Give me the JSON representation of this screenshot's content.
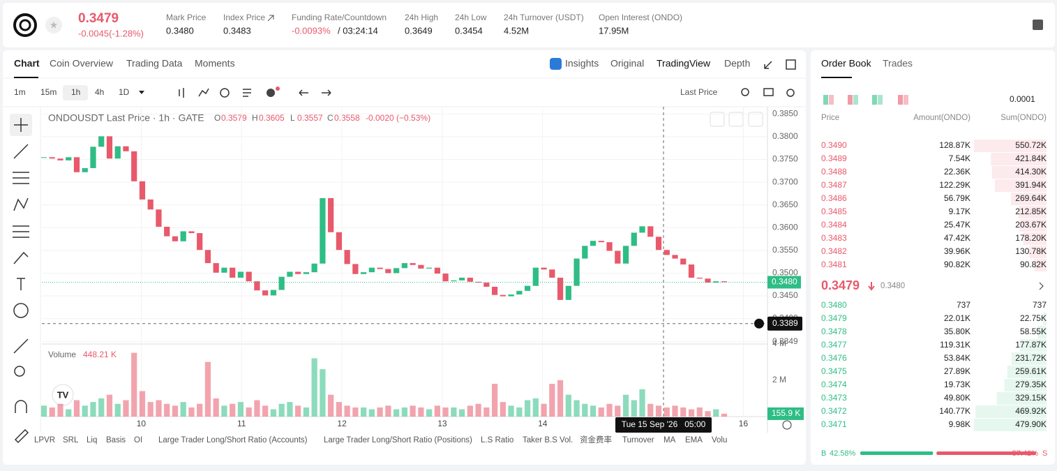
{
  "header": {
    "price": "0.3479",
    "change": "-0.0045(-1.28%)",
    "stats": [
      {
        "label": "Mark Price",
        "value": "0.3480"
      },
      {
        "label": "Index Price",
        "value": "0.3483"
      },
      {
        "label": "Funding Rate/Countdown",
        "value": "-0.0093%",
        "value2": "/ 03:24:14"
      },
      {
        "label": "24h High",
        "value": "0.3649"
      },
      {
        "label": "24h Low",
        "value": "0.3454"
      },
      {
        "label": "24h Turnover (USDT)",
        "value": "4.52M"
      },
      {
        "label": "Open Interest (ONDO)",
        "value": "17.95M"
      }
    ]
  },
  "tabs": [
    "Chart",
    "Coin Overview",
    "Trading Data",
    "Moments"
  ],
  "view_tabs": [
    "Insights",
    "Original",
    "TradingView",
    "Depth"
  ],
  "intervals": [
    "1m",
    "15m",
    "1h",
    "4h",
    "1D"
  ],
  "price_source": "Last Price",
  "legend": {
    "title": "ONDOUSDT Last Price · 1h · GATE",
    "ohlc": [
      {
        "key": "O",
        "value": "0.3579"
      },
      {
        "key": "H",
        "value": "0.3605"
      },
      {
        "key": "L",
        "value": "0.3557"
      },
      {
        "key": "C",
        "value": "0.3558"
      }
    ],
    "change": "-0.0020 (−0.53%)"
  },
  "chart_data": {
    "type": "candlestick",
    "up_color": "#2ebd85",
    "down_color": "#e8596b",
    "closes": [
      0.3755,
      0.3752,
      0.3748,
      0.3755,
      0.3722,
      0.3731,
      0.3778,
      0.3801,
      0.3752,
      0.3779,
      0.3768,
      0.3702,
      0.3662,
      0.364,
      0.3602,
      0.3581,
      0.357,
      0.3592,
      0.3588,
      0.3551,
      0.3522,
      0.3501,
      0.3512,
      0.349,
      0.3503,
      0.3482,
      0.3462,
      0.3451,
      0.3463,
      0.3492,
      0.3503,
      0.3498,
      0.3502,
      0.3521,
      0.3665,
      0.359,
      0.3551,
      0.352,
      0.3498,
      0.3502,
      0.3512,
      0.3509,
      0.35,
      0.3511,
      0.3522,
      0.3518,
      0.351,
      0.3512,
      0.3499,
      0.3482,
      0.3484,
      0.349,
      0.3481,
      0.3479,
      0.347,
      0.3452,
      0.3449,
      0.3453,
      0.3461,
      0.3472,
      0.3512,
      0.3508,
      0.349,
      0.3441,
      0.3472,
      0.3532,
      0.356,
      0.3571,
      0.3568,
      0.3549,
      0.3521,
      0.356,
      0.3589,
      0.3603,
      0.358,
      0.3551,
      0.354,
      0.3532,
      0.3519,
      0.349,
      0.3488,
      0.3479,
      0.3482,
      0.348
    ],
    "volumes": [
      0.6,
      0.5,
      0.7,
      0.4,
      0.9,
      0.6,
      0.8,
      1.0,
      1.2,
      0.7,
      0.9,
      3.5,
      1.4,
      0.8,
      0.9,
      0.7,
      0.6,
      0.8,
      0.5,
      0.7,
      3.0,
      1.0,
      0.6,
      0.7,
      0.8,
      0.5,
      0.9,
      0.6,
      0.4,
      0.7,
      0.8,
      0.6,
      0.5,
      3.2,
      2.6,
      1.2,
      0.8,
      0.6,
      0.5,
      0.5,
      0.4,
      0.5,
      0.6,
      0.4,
      0.5,
      0.6,
      0.5,
      0.4,
      0.6,
      0.5,
      0.5,
      0.4,
      0.6,
      0.7,
      0.5,
      1.8,
      0.8,
      0.6,
      0.5,
      0.9,
      1.0,
      0.7,
      1.8,
      2.0,
      1.2,
      0.9,
      0.7,
      0.6,
      0.5,
      0.7,
      0.6,
      1.2,
      0.9,
      1.5,
      0.7,
      0.6,
      0.5,
      0.6,
      0.5,
      0.4,
      0.5,
      0.3,
      0.4,
      0.16
    ],
    "ylim": [
      0.3349,
      0.385
    ],
    "yticks": [
      {
        "value": 0.385,
        "label": "0.3850"
      },
      {
        "value": 0.38,
        "label": "0.3800"
      },
      {
        "value": 0.375,
        "label": "0.3750"
      },
      {
        "value": 0.37,
        "label": "0.3700"
      },
      {
        "value": 0.365,
        "label": "0.3650"
      },
      {
        "value": 0.36,
        "label": "0.3600"
      },
      {
        "value": 0.355,
        "label": "0.3550"
      },
      {
        "value": 0.35,
        "label": "0.3500"
      },
      {
        "value": 0.345,
        "label": "0.3450"
      },
      {
        "value": 0.34,
        "label": "0.3400"
      },
      0.3349
    ],
    "vol_ylim": [
      0,
      4.1
    ],
    "vol_yticks": [
      {
        "value": 2,
        "label": "2 M"
      },
      {
        "value": 4,
        "label": "4 M"
      }
    ],
    "xlim": [
      9.01,
      16.24
    ],
    "xticks": [
      10,
      11,
      12,
      13,
      14,
      16
    ],
    "last_price": {
      "value": 0.348,
      "label": "0.3480"
    },
    "crosshair_price": {
      "value": 0.3389,
      "label": "0.3389"
    },
    "crosshair_time": "Tue 15 Sep '26   05:00",
    "volume_title": "Volume",
    "volume_value": "448.21 K",
    "last_volume": {
      "value": 0.1559,
      "label": "155.9 K"
    },
    "grid": true
  },
  "indicators": [
    "LPVR",
    "SRL",
    "Liq",
    "Basis",
    "OI",
    "Large Trader Long/Short Ratio (Accounts)",
    "Large Trader Long/Short Ratio (Positions)",
    "L.S Ratio",
    "Taker B.S Vol.",
    "资金费率",
    "Turnover",
    "MA",
    "EMA",
    "Volu"
  ],
  "order_book": {
    "tabs": [
      "Order Book",
      "Trades"
    ],
    "precision": "0.0001",
    "columns": [
      "Price",
      "Amount(ONDO)",
      "Sum(ONDO)"
    ],
    "asks": [
      [
        "0.3490",
        "128.87K",
        {
          "value": 550720,
          "label": "550.72K"
        }
      ],
      [
        "0.3489",
        "7.54K",
        {
          "value": 421840,
          "label": "421.84K"
        }
      ],
      [
        "0.3488",
        "22.36K",
        {
          "value": 414300,
          "label": "414.30K"
        }
      ],
      [
        "0.3487",
        "122.29K",
        {
          "value": 391940,
          "label": "391.94K"
        }
      ],
      [
        "0.3486",
        "56.79K",
        {
          "value": 269640,
          "label": "269.64K"
        }
      ],
      [
        "0.3485",
        "9.17K",
        {
          "value": 212850,
          "label": "212.85K"
        }
      ],
      [
        "0.3484",
        "25.47K",
        {
          "value": 203670,
          "label": "203.67K"
        }
      ],
      [
        "0.3483",
        "47.42K",
        {
          "value": 178200,
          "label": "178.20K"
        }
      ],
      [
        "0.3482",
        "39.96K",
        {
          "value": 130780,
          "label": "130.78K"
        }
      ],
      [
        "0.3481",
        "90.82K",
        {
          "value": 90820,
          "label": "90.82K"
        }
      ]
    ],
    "last": "0.3479",
    "mark": "0.3480",
    "bids": [
      [
        "0.3480",
        "737",
        737
      ],
      [
        "0.3479",
        "22.01K",
        {
          "value": 22750,
          "label": "22.75K"
        }
      ],
      [
        "0.3478",
        "35.80K",
        {
          "value": 58550,
          "label": "58.55K"
        }
      ],
      [
        "0.3477",
        "119.31K",
        {
          "value": 177870,
          "label": "177.87K"
        }
      ],
      [
        "0.3476",
        "53.84K",
        {
          "value": 231720,
          "label": "231.72K"
        }
      ],
      [
        "0.3475",
        "27.89K",
        {
          "value": 259610,
          "label": "259.61K"
        }
      ],
      [
        "0.3474",
        "19.73K",
        {
          "value": 279350,
          "label": "279.35K"
        }
      ],
      [
        "0.3473",
        "49.80K",
        {
          "value": 329150,
          "label": "329.15K"
        }
      ],
      [
        "0.3472",
        "140.77K",
        {
          "value": 469920,
          "label": "469.92K"
        }
      ],
      [
        "0.3471",
        "9.98K",
        {
          "value": 479900,
          "label": "479.90K"
        }
      ]
    ],
    "buy_letter": "B",
    "buy_ratio": {
      "value": 42.58,
      "label": "42.58%"
    },
    "sell_ratio": {
      "value": 57.42,
      "label": "57.42%"
    },
    "sell_letter": "S"
  }
}
